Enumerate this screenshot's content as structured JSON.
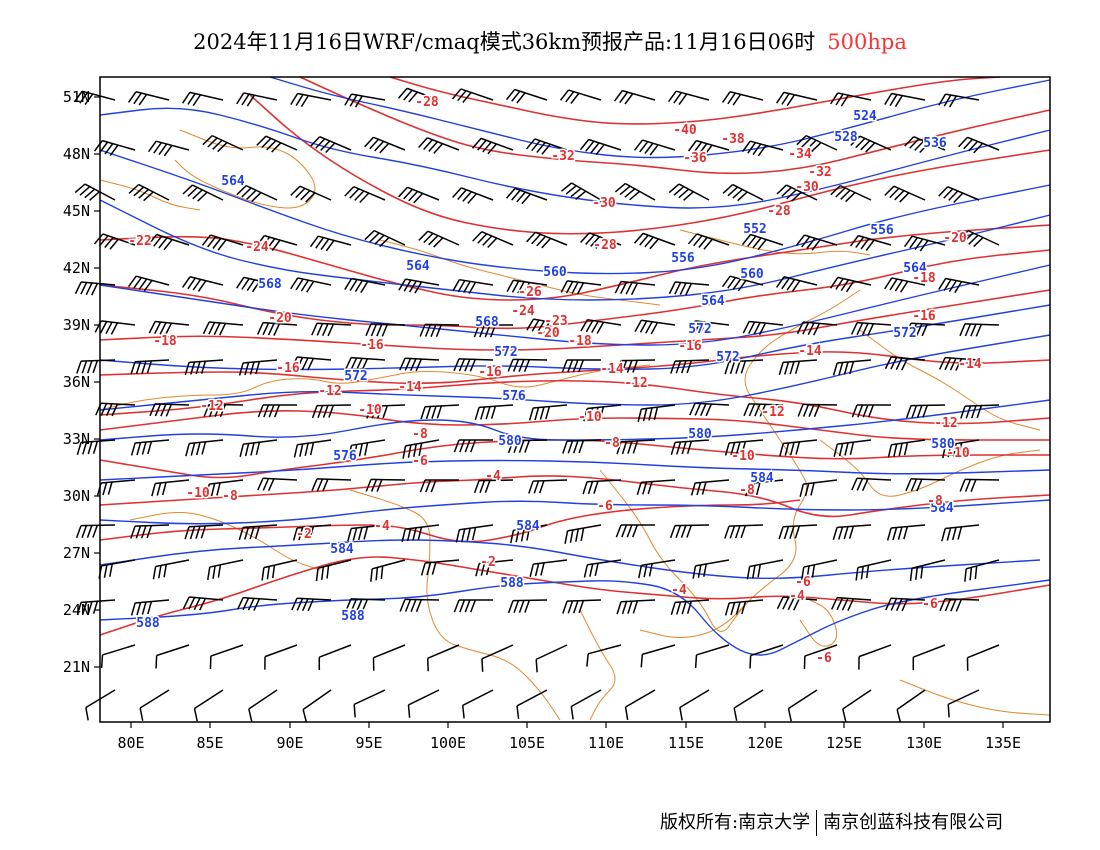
{
  "title": {
    "text": "2024年11月16日WRF/cmaq模式36km预报产品:11月16日06时",
    "level": "500hpa"
  },
  "colors": {
    "height_contour": "#2040e0",
    "temperature_contour": "#e03030",
    "boundary": "#e08a30",
    "wind_barb": "#000000"
  },
  "axes": {
    "lat_labels": [
      "51N",
      "48N",
      "45N",
      "42N",
      "39N",
      "36N",
      "33N",
      "30N",
      "27N",
      "24N",
      "21N"
    ],
    "lon_labels": [
      "80E",
      "85E",
      "90E",
      "95E",
      "100E",
      "105E",
      "110E",
      "115E",
      "120E",
      "125E",
      "130E",
      "135E"
    ]
  },
  "height_labels": [
    "528",
    "524",
    "536",
    "552",
    "556",
    "560",
    "564",
    "568",
    "572",
    "576",
    "580",
    "584",
    "588"
  ],
  "temperature_labels": [
    "-40",
    "-38",
    "-36",
    "-34",
    "-32",
    "-30",
    "-28",
    "-26",
    "-24",
    "-23",
    "-22",
    "-20",
    "-18",
    "-16",
    "-14",
    "-12",
    "-10",
    "-8",
    "-6",
    "-4",
    "-2"
  ],
  "credit": {
    "left": "版权所有:南京大学",
    "right": "南京创蓝科技有限公司"
  }
}
